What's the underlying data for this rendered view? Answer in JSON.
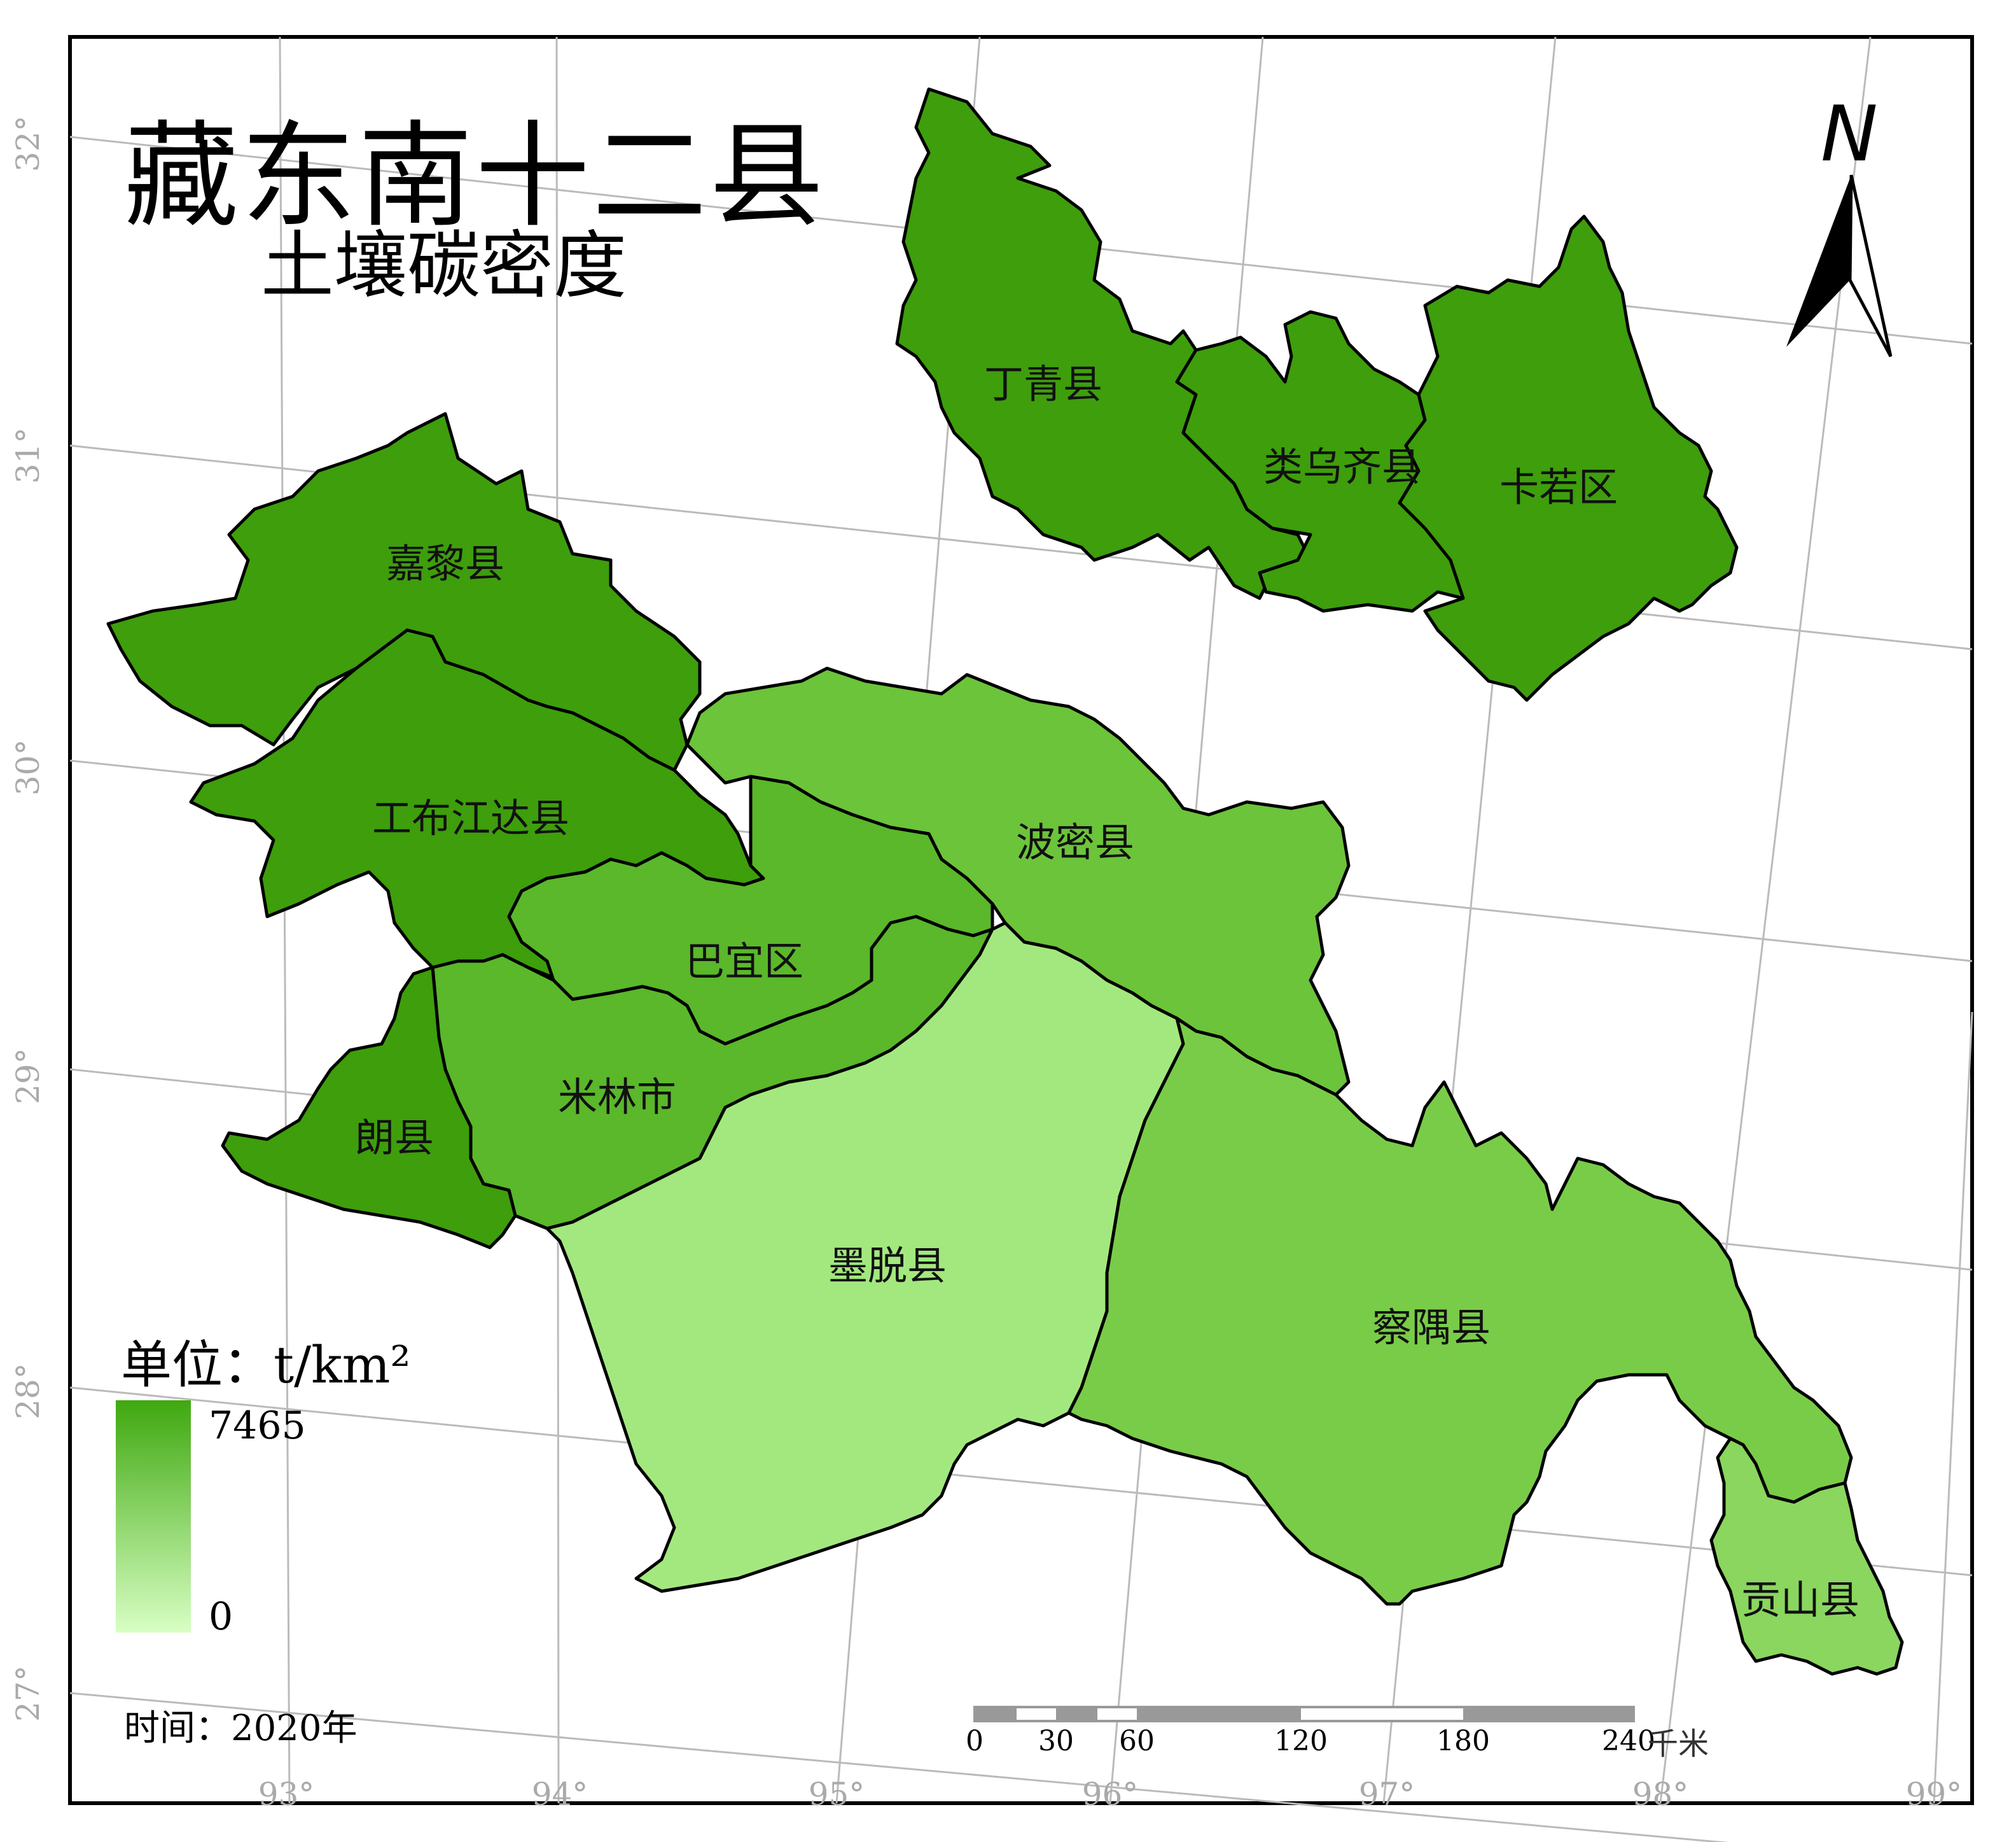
{
  "title": "藏东南十二县",
  "subtitle": "土壤碳密度",
  "north_arrow": {
    "letter": "N"
  },
  "legend": {
    "unit_label": "单位：t/km²",
    "max_label": "7465",
    "min_label": "0",
    "ramp_colors": [
      "#3fa80f",
      "#d8ffc4"
    ]
  },
  "time_label": "时间：2020年",
  "scale_bar": {
    "unit": "千米",
    "ticks": [
      "0",
      "30",
      "60",
      "120",
      "180",
      "240"
    ]
  },
  "graticule": {
    "longitude_ticks": [
      "93°",
      "94°",
      "95°",
      "96°",
      "97°",
      "98°",
      "99°"
    ],
    "latitude_ticks": [
      "32°",
      "31°",
      "30°",
      "29°",
      "28°",
      "27°"
    ]
  },
  "regions": [
    {
      "name": "丁青县",
      "density": "high",
      "color": "#3e9e0c"
    },
    {
      "name": "类乌齐县",
      "density": "high",
      "color": "#3e9e0c"
    },
    {
      "name": "卡若区",
      "density": "high",
      "color": "#3e9e0c"
    },
    {
      "name": "嘉黎县",
      "density": "high",
      "color": "#3e9e0c"
    },
    {
      "name": "工布江达县",
      "density": "high",
      "color": "#3e9e0c"
    },
    {
      "name": "波密县",
      "density": "mixed",
      "color": "#6cc43a"
    },
    {
      "name": "巴宜区",
      "density": "mixed",
      "color": "#5ab82a"
    },
    {
      "name": "米林市",
      "density": "mixed",
      "color": "#5ab82a"
    },
    {
      "name": "朗县",
      "density": "high",
      "color": "#3e9e0c"
    },
    {
      "name": "墨脱县",
      "density": "low",
      "color": "#a3e87e"
    },
    {
      "name": "察隅县",
      "density": "mixed",
      "color": "#79cc48"
    },
    {
      "name": "贡山县",
      "density": "mixed",
      "color": "#8ad65e"
    }
  ],
  "colors": {
    "frame": "#000000",
    "graticule": "#bbbbbb",
    "boundary": "#000000"
  }
}
